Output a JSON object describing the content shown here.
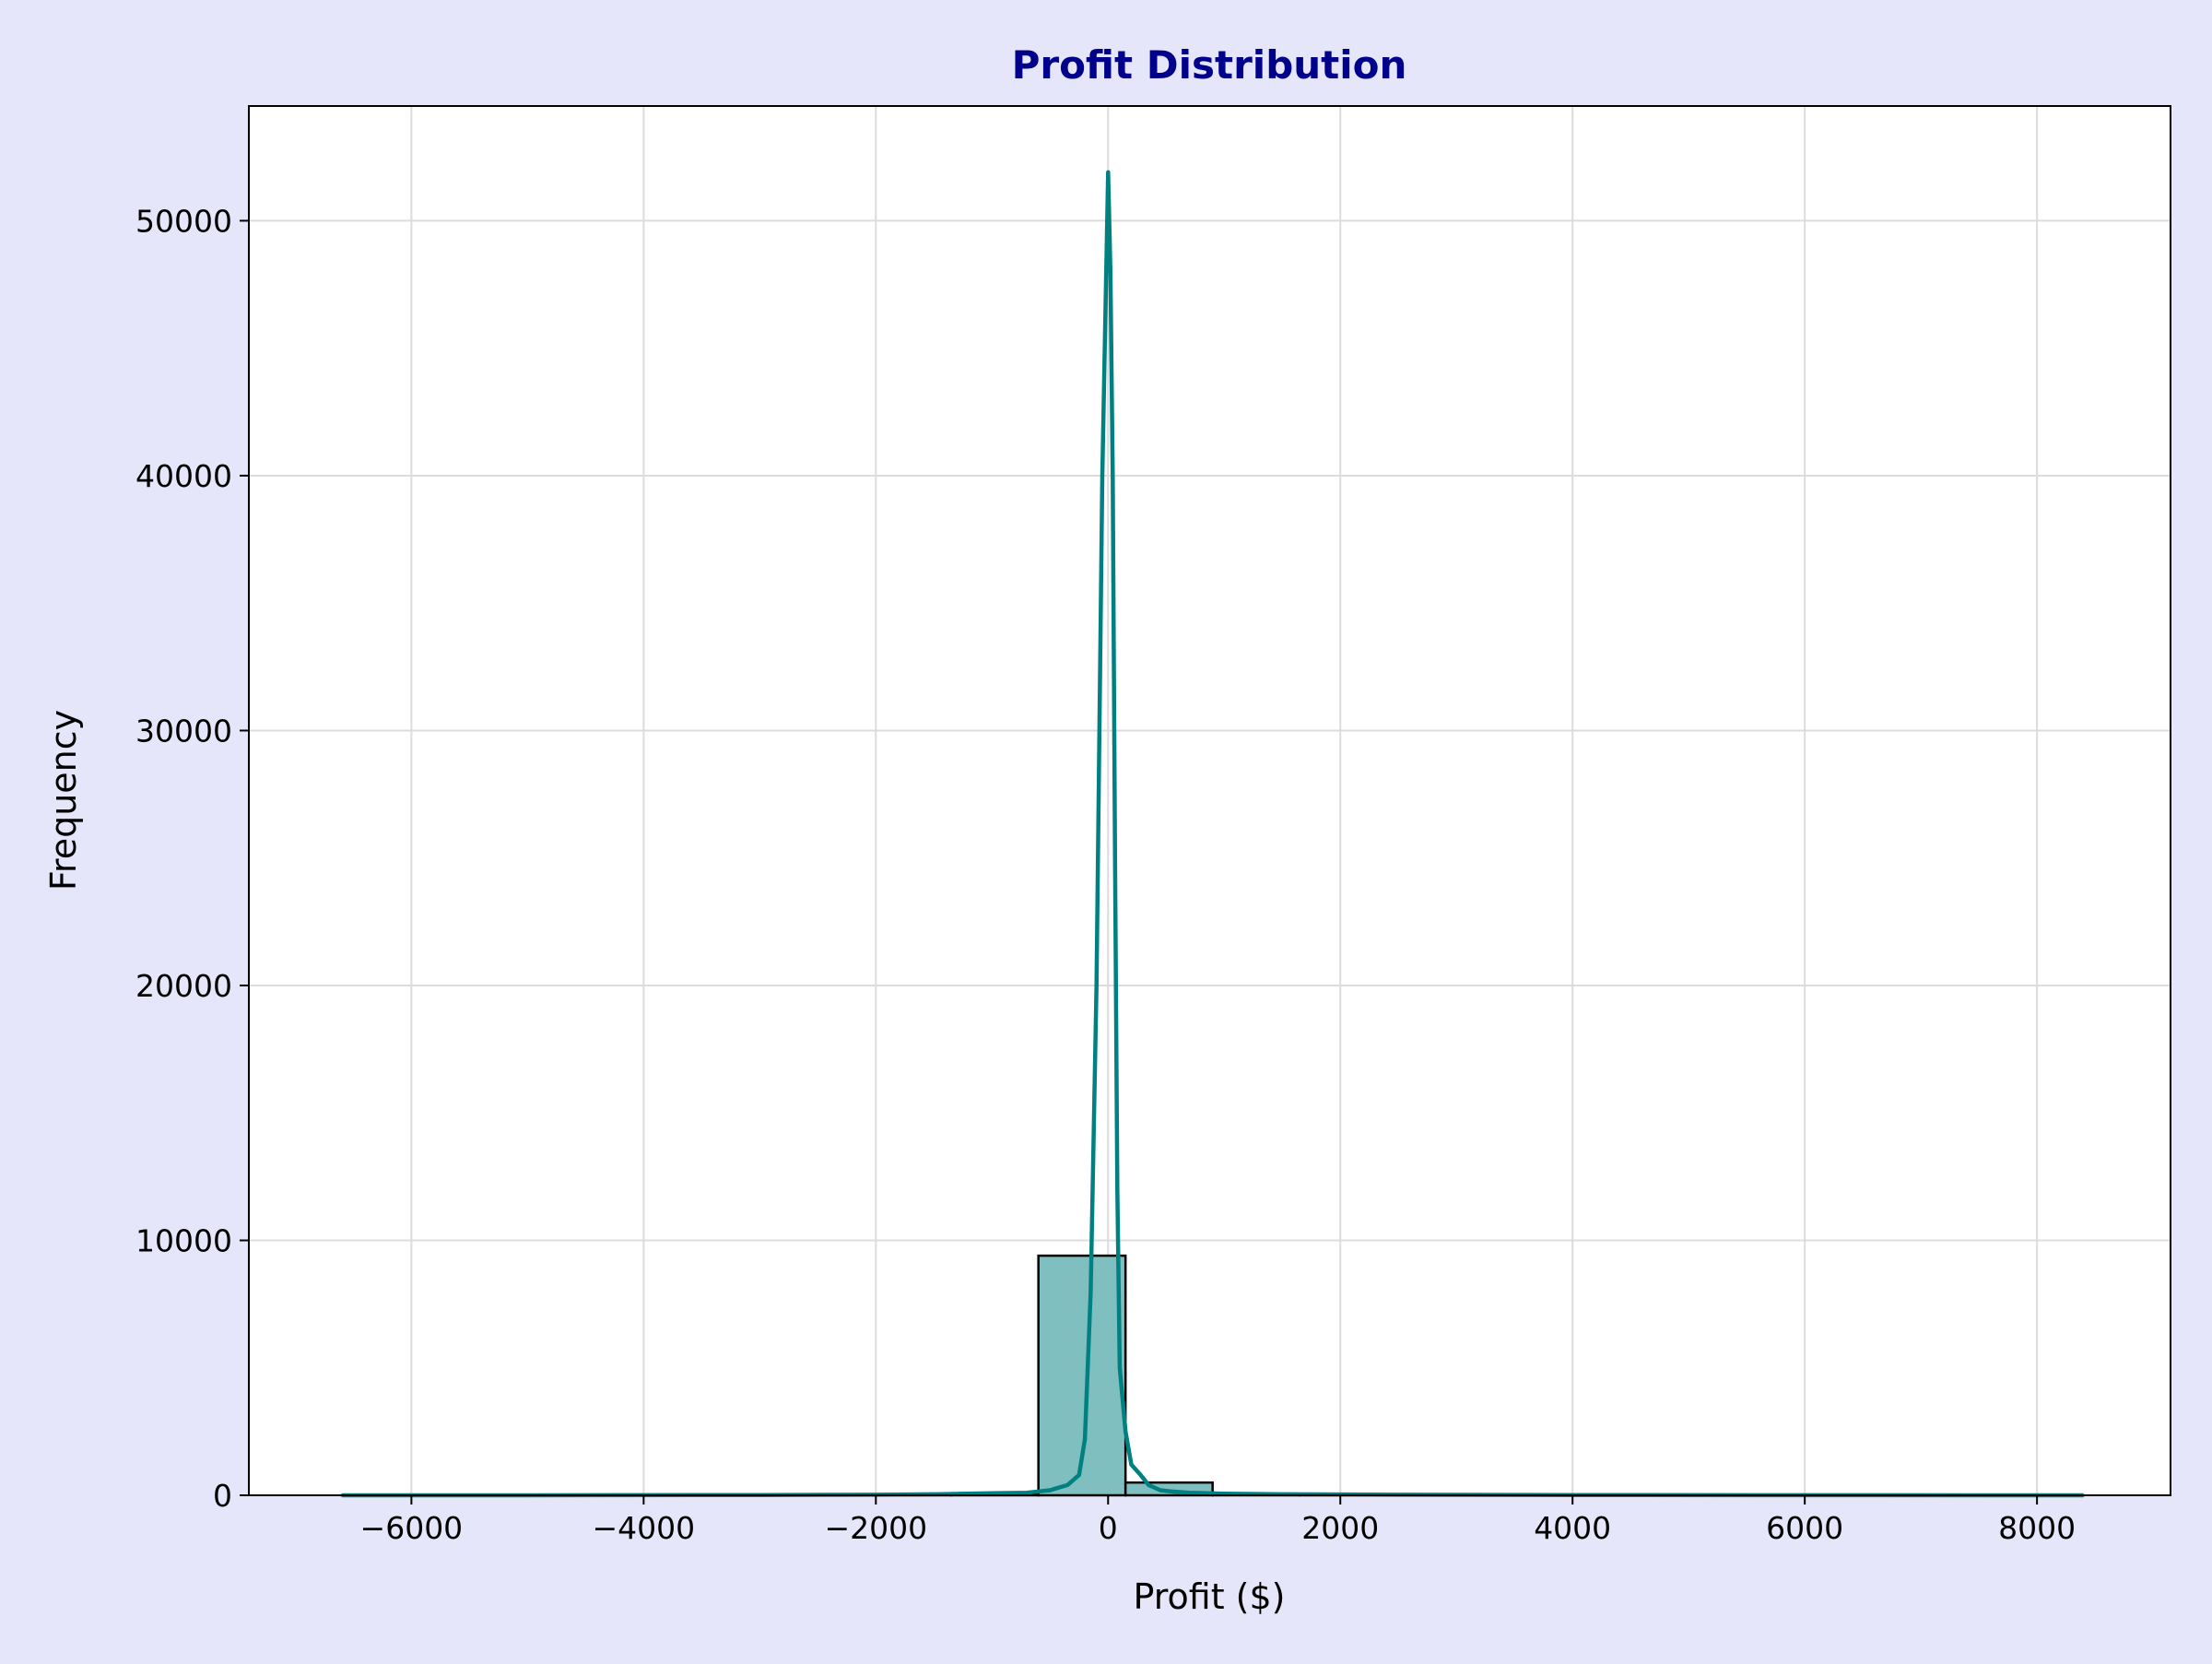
{
  "figure": {
    "background": "#e6e6fa",
    "plot_background": "#ffffff"
  },
  "chart_data": {
    "type": "bar",
    "title": "Profit Distribution",
    "xlabel": "Profit ($)",
    "ylabel": "Frequency",
    "xlim": [
      -7400,
      9150
    ],
    "ylim": [
      0,
      54500
    ],
    "xticks": [
      -6000,
      -4000,
      -2000,
      0,
      2000,
      4000,
      6000,
      8000
    ],
    "xtick_labels": [
      "−6000",
      "−4000",
      "−2000",
      "0",
      "2000",
      "4000",
      "6000",
      "8000"
    ],
    "yticks": [
      0,
      10000,
      20000,
      30000,
      40000,
      50000
    ],
    "ytick_labels": [
      "0",
      "10000",
      "20000",
      "30000",
      "40000",
      "50000"
    ],
    "grid": true,
    "legend": "none",
    "histogram": {
      "bins": [
        {
          "x0": -6600,
          "x1": -5850,
          "count": 1
        },
        {
          "x0": -5850,
          "x1": -5100,
          "count": 0
        },
        {
          "x0": -5100,
          "x1": -4350,
          "count": 0
        },
        {
          "x0": -4350,
          "x1": -3600,
          "count": 1
        },
        {
          "x0": -3600,
          "x1": -2850,
          "count": 2
        },
        {
          "x0": -2850,
          "x1": -2100,
          "count": 3
        },
        {
          "x0": -2100,
          "x1": -1350,
          "count": 8
        },
        {
          "x0": -1350,
          "x1": -600,
          "count": 60
        },
        {
          "x0": -600,
          "x1": 150,
          "count": 9400
        },
        {
          "x0": 150,
          "x1": 900,
          "count": 500
        },
        {
          "x0": 900,
          "x1": 1650,
          "count": 50
        },
        {
          "x0": 1650,
          "x1": 2400,
          "count": 12
        },
        {
          "x0": 2400,
          "x1": 3150,
          "count": 4
        },
        {
          "x0": 3150,
          "x1": 3900,
          "count": 2
        },
        {
          "x0": 3900,
          "x1": 4650,
          "count": 1
        },
        {
          "x0": 4650,
          "x1": 5400,
          "count": 1
        },
        {
          "x0": 5400,
          "x1": 6150,
          "count": 0
        },
        {
          "x0": 6150,
          "x1": 6900,
          "count": 0
        },
        {
          "x0": 6900,
          "x1": 7650,
          "count": 0
        },
        {
          "x0": 7650,
          "x1": 8400,
          "count": 1
        }
      ],
      "fill_color": "#80bfbf",
      "edge_color": "#000000"
    },
    "kde": {
      "color": "#008080",
      "x": [
        -6600,
        -5000,
        -3000,
        -2000,
        -1500,
        -1000,
        -700,
        -500,
        -350,
        -250,
        -200,
        -150,
        -100,
        -50,
        0,
        20,
        40,
        60,
        80,
        100,
        150,
        200,
        280,
        350,
        450,
        550,
        700,
        1000,
        1500,
        2500,
        4000,
        6000,
        8400
      ],
      "y": [
        0,
        0,
        10,
        20,
        40,
        80,
        100,
        200,
        400,
        800,
        2200,
        8000,
        20000,
        40000,
        51900,
        48000,
        40000,
        25000,
        12000,
        5000,
        2500,
        1200,
        800,
        400,
        200,
        150,
        100,
        60,
        40,
        20,
        10,
        5,
        0
      ]
    }
  }
}
